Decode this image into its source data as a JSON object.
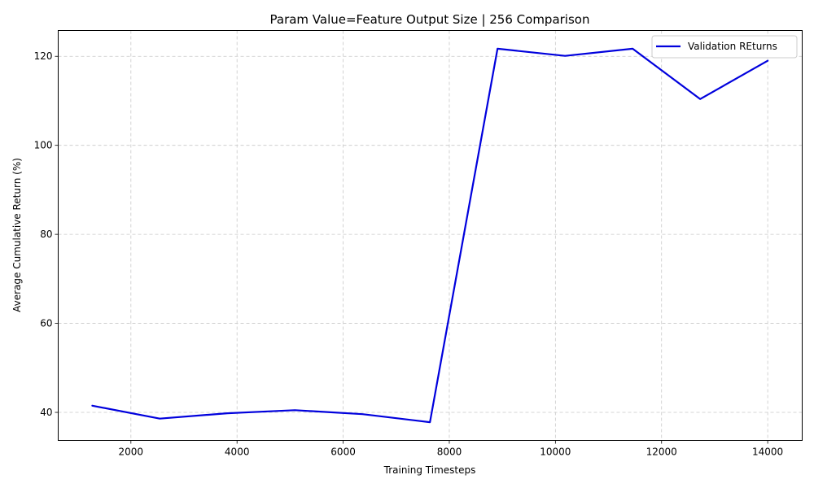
{
  "chart_data": {
    "type": "line",
    "title": "Param Value=Feature Output Size | 256 Comparison",
    "xlabel": "Training Timesteps",
    "ylabel": "Average Cumulative Return (%)",
    "xlim": [
      630,
      14650
    ],
    "ylim": [
      33.7,
      125.8
    ],
    "xticks": [
      2000,
      4000,
      6000,
      8000,
      10000,
      12000,
      14000
    ],
    "yticks": [
      40,
      60,
      80,
      100,
      120
    ],
    "grid": true,
    "legend_position": "top-right",
    "series": [
      {
        "name": "Validation REturns",
        "color": "#0000dd",
        "x": [
          1273,
          2545,
          3818,
          5091,
          6364,
          7636,
          8909,
          10182,
          11455,
          12727,
          14000
        ],
        "y": [
          41.5,
          38.6,
          39.8,
          40.5,
          39.6,
          37.8,
          121.7,
          120.1,
          121.7,
          110.4,
          119.0
        ]
      }
    ]
  }
}
